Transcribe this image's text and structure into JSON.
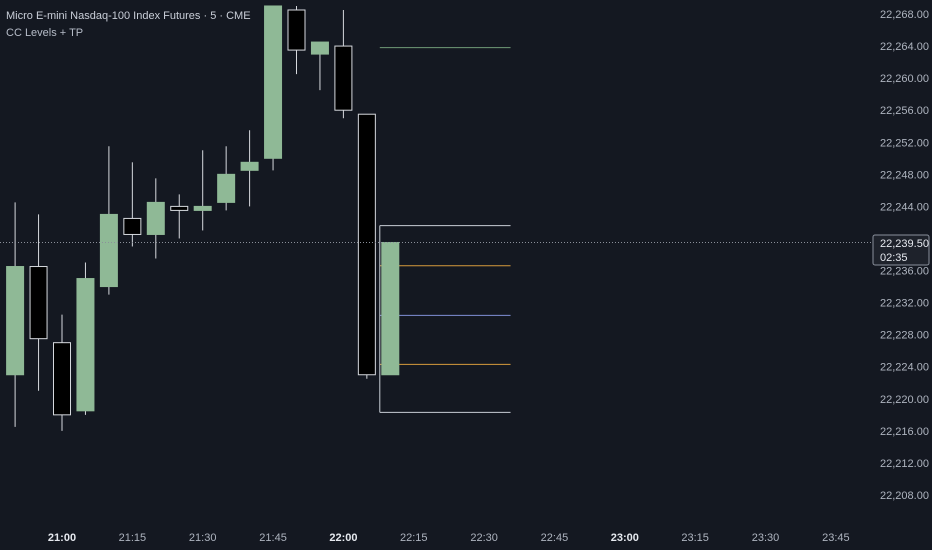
{
  "header": {
    "title": "Micro E-mini Nasdaq-100 Index Futures · 5 · CME",
    "indicator": "CC Levels + TP"
  },
  "colors": {
    "background": "#141821",
    "up_candle": "#8fb996",
    "down_candle": "#000000",
    "wick": "#d6d9de",
    "level_green": "#6f9a77",
    "level_orange": "#d79a3c",
    "level_blue": "#7f8fd6",
    "level_white": "#c9ced6",
    "crosshair": "#8b909a"
  },
  "chart_data": {
    "type": "candlestick",
    "x_ticks": [
      {
        "label": "21:00",
        "bold": true,
        "t": 0
      },
      {
        "label": "21:15",
        "bold": false,
        "t": 3
      },
      {
        "label": "21:30",
        "bold": false,
        "t": 6
      },
      {
        "label": "21:45",
        "bold": false,
        "t": 9
      },
      {
        "label": "22:00",
        "bold": true,
        "t": 12
      },
      {
        "label": "22:15",
        "bold": false,
        "t": 15
      },
      {
        "label": "22:30",
        "bold": false,
        "t": 18
      },
      {
        "label": "22:45",
        "bold": false,
        "t": 21
      },
      {
        "label": "23:00",
        "bold": true,
        "t": 24
      },
      {
        "label": "23:15",
        "bold": false,
        "t": 27
      },
      {
        "label": "23:30",
        "bold": false,
        "t": 30
      },
      {
        "label": "23:45",
        "bold": false,
        "t": 33
      }
    ],
    "y_ticks": [
      "22,268.00",
      "22,264.00",
      "22,260.00",
      "22,256.00",
      "22,252.00",
      "22,248.00",
      "22,244.00",
      "22,240.00",
      "22,236.00",
      "22,232.00",
      "22,228.00",
      "22,224.00",
      "22,220.00",
      "22,216.00",
      "22,212.00",
      "22,208.00"
    ],
    "ylim": [
      22205.5,
      22269.5
    ],
    "xlim": [
      -2.6,
      35.0
    ],
    "candles": [
      {
        "t": -2,
        "open": 22223.0,
        "high": 22244.5,
        "low": 22216.5,
        "close": 22236.5
      },
      {
        "t": -1,
        "open": 22236.5,
        "high": 22243.0,
        "low": 22221.0,
        "close": 22227.5
      },
      {
        "t": 0,
        "open": 22227.0,
        "high": 22230.5,
        "low": 22216.0,
        "close": 22218.0
      },
      {
        "t": 1,
        "open": 22218.5,
        "high": 22237.0,
        "low": 22218.0,
        "close": 22235.0
      },
      {
        "t": 2,
        "open": 22234.0,
        "high": 22251.5,
        "low": 22233.0,
        "close": 22243.0
      },
      {
        "t": 3,
        "open": 22242.5,
        "high": 22249.5,
        "low": 22239.0,
        "close": 22240.5
      },
      {
        "t": 4,
        "open": 22240.5,
        "high": 22247.5,
        "low": 22237.5,
        "close": 22244.5
      },
      {
        "t": 5,
        "open": 22244.0,
        "high": 22245.5,
        "low": 22240.0,
        "close": 22243.5
      },
      {
        "t": 6,
        "open": 22243.5,
        "high": 22251.0,
        "low": 22241.0,
        "close": 22244.0
      },
      {
        "t": 7,
        "open": 22244.5,
        "high": 22251.5,
        "low": 22243.5,
        "close": 22248.0
      },
      {
        "t": 8,
        "open": 22248.5,
        "high": 22253.5,
        "low": 22244.0,
        "close": 22249.5
      },
      {
        "t": 9,
        "open": 22250.0,
        "high": 22269.0,
        "low": 22248.5,
        "close": 22269.0
      },
      {
        "t": 10,
        "open": 22268.5,
        "high": 22269.0,
        "low": 22260.5,
        "close": 22263.5
      },
      {
        "t": 11,
        "open": 22263.0,
        "high": 22264.0,
        "low": 22258.5,
        "close": 22264.5
      },
      {
        "t": 12,
        "open": 22264.0,
        "high": 22268.5,
        "low": 22255.0,
        "close": 22256.0
      },
      {
        "t": 13,
        "open": 22255.5,
        "high": 22255.5,
        "low": 22222.5,
        "close": 22223.0
      },
      {
        "t": 14,
        "open": 22223.0,
        "high": 22239.5,
        "low": 22223.0,
        "close": 22239.5
      }
    ],
    "levels": [
      {
        "name": "",
        "price": 22263.8,
        "color": "#6f9a77"
      },
      {
        "name": "",
        "price": 22241.6,
        "color": "#c9ced6"
      },
      {
        "name": "",
        "price": 22236.6,
        "color": "#d79a3c"
      },
      {
        "name": "",
        "price": 22230.4,
        "color": "#7f8fd6"
      },
      {
        "name": "",
        "price": 22224.3,
        "color": "#d79a3c"
      },
      {
        "name": "",
        "price": 22218.3,
        "color": "#c9ced6"
      }
    ],
    "levels_start_t": 14,
    "levels_end_t": 19,
    "last_price": "22,239.50",
    "last_price_value": 22239.5,
    "countdown": "02:35"
  }
}
